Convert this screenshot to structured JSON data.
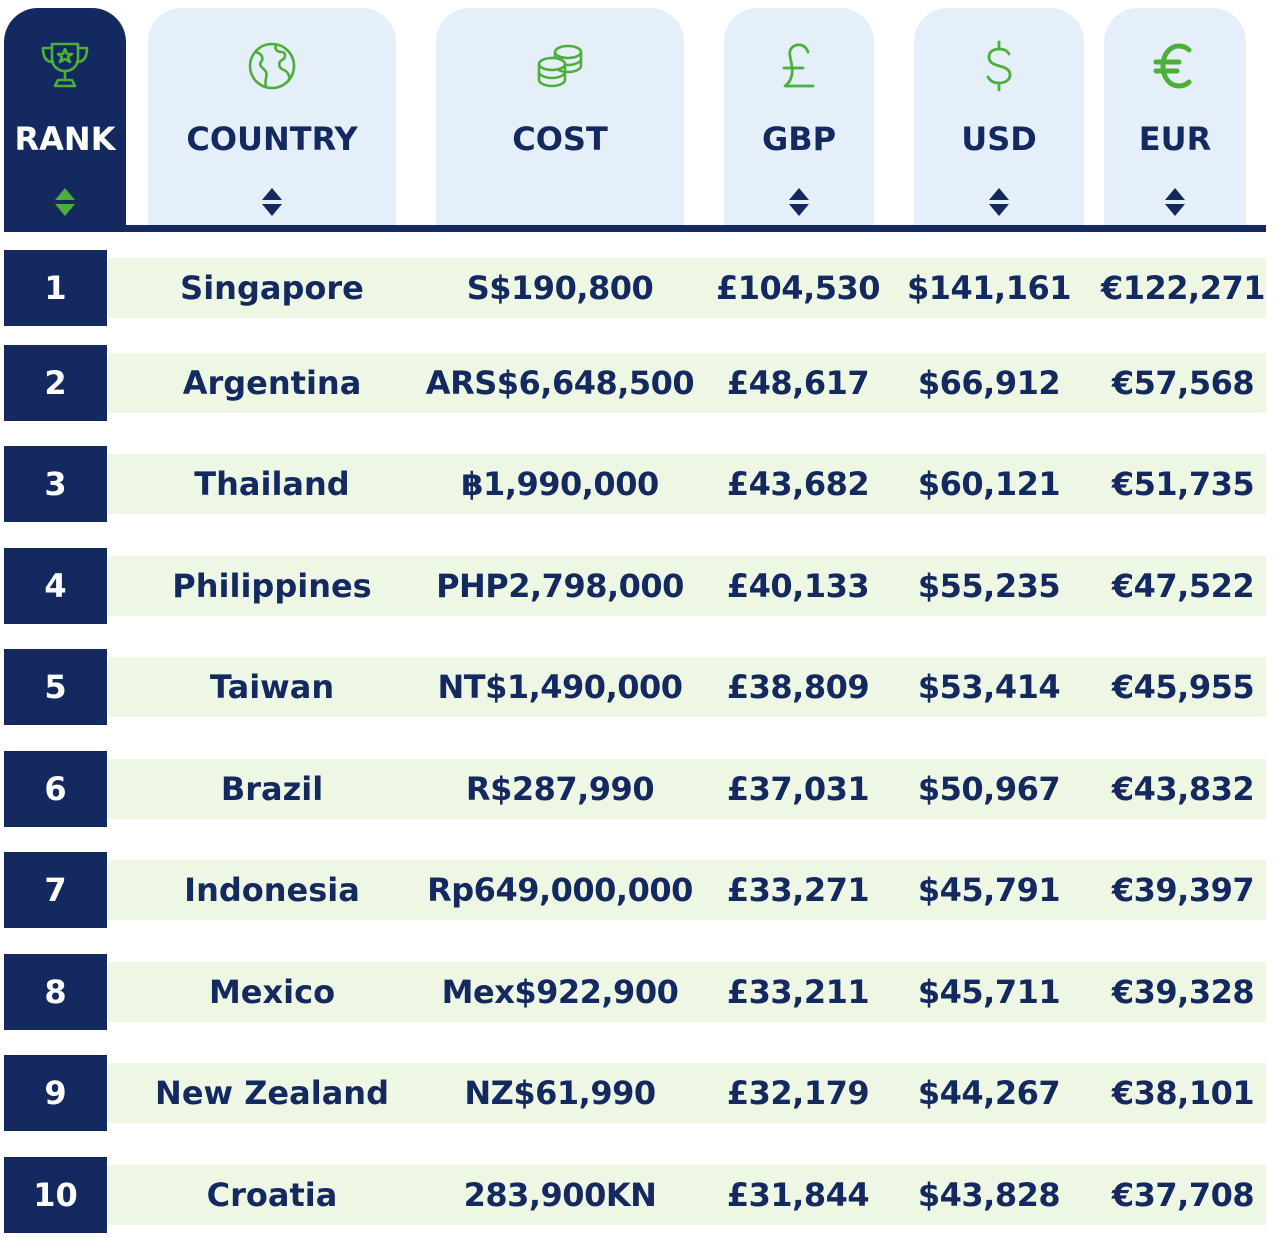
{
  "colors": {
    "navy": "#13295f",
    "header_bg": "#e5eff9",
    "accent_green": "#4caf3a",
    "row_band": "#eef7e4"
  },
  "headers": [
    {
      "key": "rank",
      "label": "RANK",
      "icon": "trophy-icon",
      "active": true
    },
    {
      "key": "country",
      "label": "COUNTRY",
      "icon": "globe-icon",
      "active": false
    },
    {
      "key": "cost",
      "label": "COST",
      "icon": "coins-icon",
      "active": false
    },
    {
      "key": "gbp",
      "label": "GBP",
      "icon": "pound-icon",
      "active": false
    },
    {
      "key": "usd",
      "label": "USD",
      "icon": "dollar-icon",
      "active": false
    },
    {
      "key": "eur",
      "label": "EUR",
      "icon": "euro-icon",
      "active": false
    }
  ],
  "rows": [
    {
      "rank": "1",
      "country": "Singapore",
      "cost": "S$190,800",
      "gbp": "£104,530",
      "usd": "$141,161",
      "eur": "€122,271"
    },
    {
      "rank": "2",
      "country": "Argentina",
      "cost": "ARS$6,648,500",
      "gbp": "£48,617",
      "usd": "$66,912",
      "eur": "€57,568"
    },
    {
      "rank": "3",
      "country": "Thailand",
      "cost": "฿1,990,000",
      "gbp": "£43,682",
      "usd": "$60,121",
      "eur": "€51,735"
    },
    {
      "rank": "4",
      "country": "Philippines",
      "cost": "PHP2,798,000",
      "gbp": "£40,133",
      "usd": "$55,235",
      "eur": "€47,522"
    },
    {
      "rank": "5",
      "country": "Taiwan",
      "cost": "NT$1,490,000",
      "gbp": "£38,809",
      "usd": "$53,414",
      "eur": "€45,955"
    },
    {
      "rank": "6",
      "country": "Brazil",
      "cost": "R$287,990",
      "gbp": "£37,031",
      "usd": "$50,967",
      "eur": "€43,832"
    },
    {
      "rank": "7",
      "country": "Indonesia",
      "cost": "Rp649,000,000",
      "gbp": "£33,271",
      "usd": "$45,791",
      "eur": "€39,397"
    },
    {
      "rank": "8",
      "country": "Mexico",
      "cost": "Mex$922,900",
      "gbp": "£33,211",
      "usd": "$45,711",
      "eur": "€39,328"
    },
    {
      "rank": "9",
      "country": "New Zealand",
      "cost": "NZ$61,990",
      "gbp": "£32,179",
      "usd": "$44,267",
      "eur": "€38,101"
    },
    {
      "rank": "10",
      "country": "Croatia",
      "cost": "283,900KN",
      "gbp": "£31,844",
      "usd": "$43,828",
      "eur": "€37,708"
    }
  ]
}
